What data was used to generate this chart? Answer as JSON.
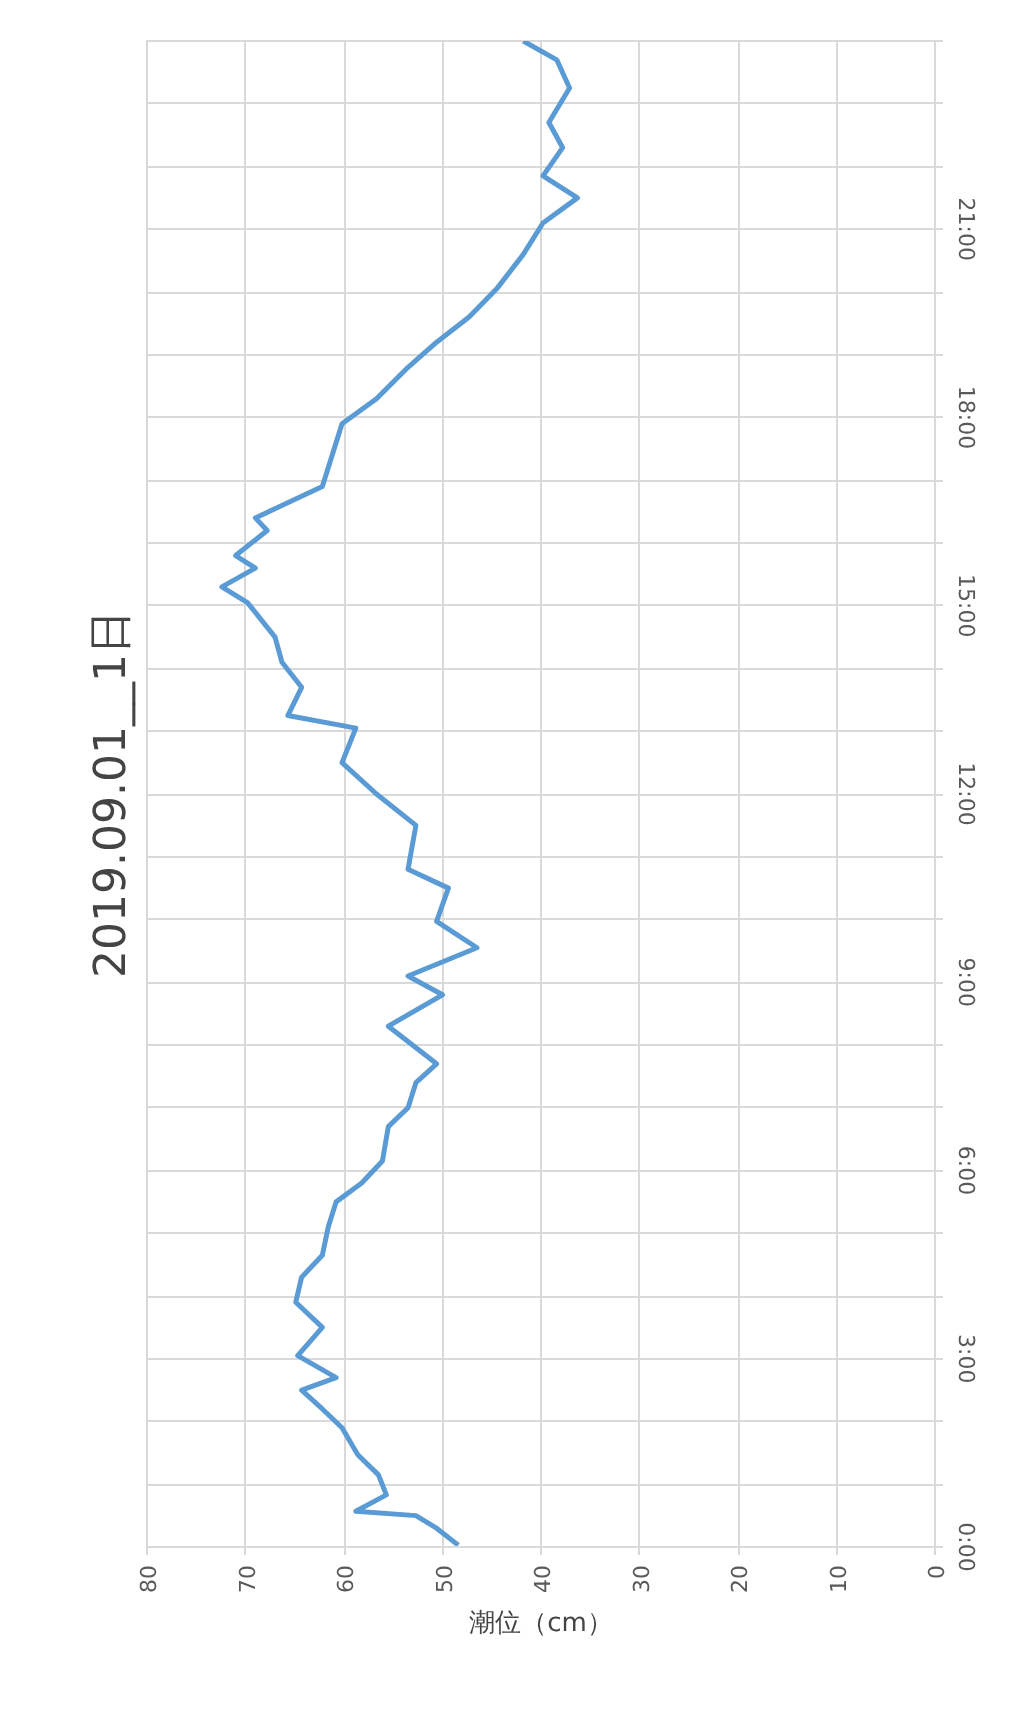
{
  "chart_data": {
    "type": "line",
    "title": "2019.09.01__1日",
    "xlabel": "潮位（cm）",
    "orientation": "horizontal",
    "x": [
      0.03,
      0.3,
      0.5,
      0.57,
      0.83,
      1.15,
      1.47,
      1.9,
      2.2,
      2.5,
      2.7,
      3.05,
      3.5,
      3.9,
      4.3,
      4.65,
      5.1,
      5.5,
      5.8,
      6.15,
      6.7,
      7.0,
      7.4,
      7.7,
      8.3,
      8.8,
      9.1,
      9.55,
      9.97,
      10.5,
      10.8,
      11.5,
      12.0,
      12.5,
      13.05,
      13.25,
      13.7,
      14.1,
      14.5,
      15.05,
      15.3,
      15.6,
      15.8,
      16.2,
      16.4,
      16.9,
      17.9,
      18.3,
      18.8,
      19.2,
      19.6,
      20.05,
      20.6,
      21.1,
      21.5,
      21.85,
      22.3,
      22.7,
      23.25,
      23.7,
      24
    ],
    "series": [
      {
        "color": "#5b9bd5",
        "values": [
          48.4,
          50.6,
          52.7,
          58.8,
          55.7,
          56.5,
          58.6,
          60.2,
          62.2,
          64.3,
          60.8,
          64.7,
          62.2,
          64.9,
          64.3,
          62.2,
          61.6,
          60.8,
          58.2,
          56.1,
          55.5,
          53.5,
          52.7,
          50.6,
          55.5,
          50,
          53.5,
          46.5,
          50.6,
          49.4,
          53.5,
          52.7,
          56.7,
          60.2,
          58.8,
          65.7,
          64.3,
          66.3,
          67,
          69.8,
          72.4,
          69,
          71,
          67.8,
          69,
          62.2,
          60.2,
          56.7,
          53.5,
          50.6,
          47.3,
          44.5,
          41.8,
          39.8,
          36.3,
          39.8,
          37.8,
          39.2,
          37.1,
          38.4,
          41.8
        ]
      }
    ],
    "xlim": [
      80,
      0
    ],
    "xticks": [
      0,
      10,
      20,
      30,
      40,
      50,
      60,
      70,
      80
    ],
    "ylim": [
      0,
      24
    ],
    "yticks": [
      {
        "value": 0,
        "label": "0:00"
      },
      {
        "value": 1,
        "label": null
      },
      {
        "value": 2,
        "label": null
      },
      {
        "value": 3,
        "label": "3:00"
      },
      {
        "value": 4,
        "label": null
      },
      {
        "value": 5,
        "label": null
      },
      {
        "value": 6,
        "label": "6:00"
      },
      {
        "value": 7,
        "label": null
      },
      {
        "value": 8,
        "label": null
      },
      {
        "value": 9,
        "label": "9:00"
      },
      {
        "value": 10,
        "label": null
      },
      {
        "value": 11,
        "label": null
      },
      {
        "value": 12,
        "label": "12:00"
      },
      {
        "value": 13,
        "label": null
      },
      {
        "value": 14,
        "label": null
      },
      {
        "value": 15,
        "label": "15:00"
      },
      {
        "value": 16,
        "label": null
      },
      {
        "value": 17,
        "label": null
      },
      {
        "value": 18,
        "label": "18:00"
      },
      {
        "value": 19,
        "label": null
      },
      {
        "value": 20,
        "label": null
      },
      {
        "value": 21,
        "label": "21:00"
      },
      {
        "value": 22,
        "label": null
      },
      {
        "value": 23,
        "label": null
      },
      {
        "value": 24,
        "label": null
      }
    ],
    "grid": true
  }
}
